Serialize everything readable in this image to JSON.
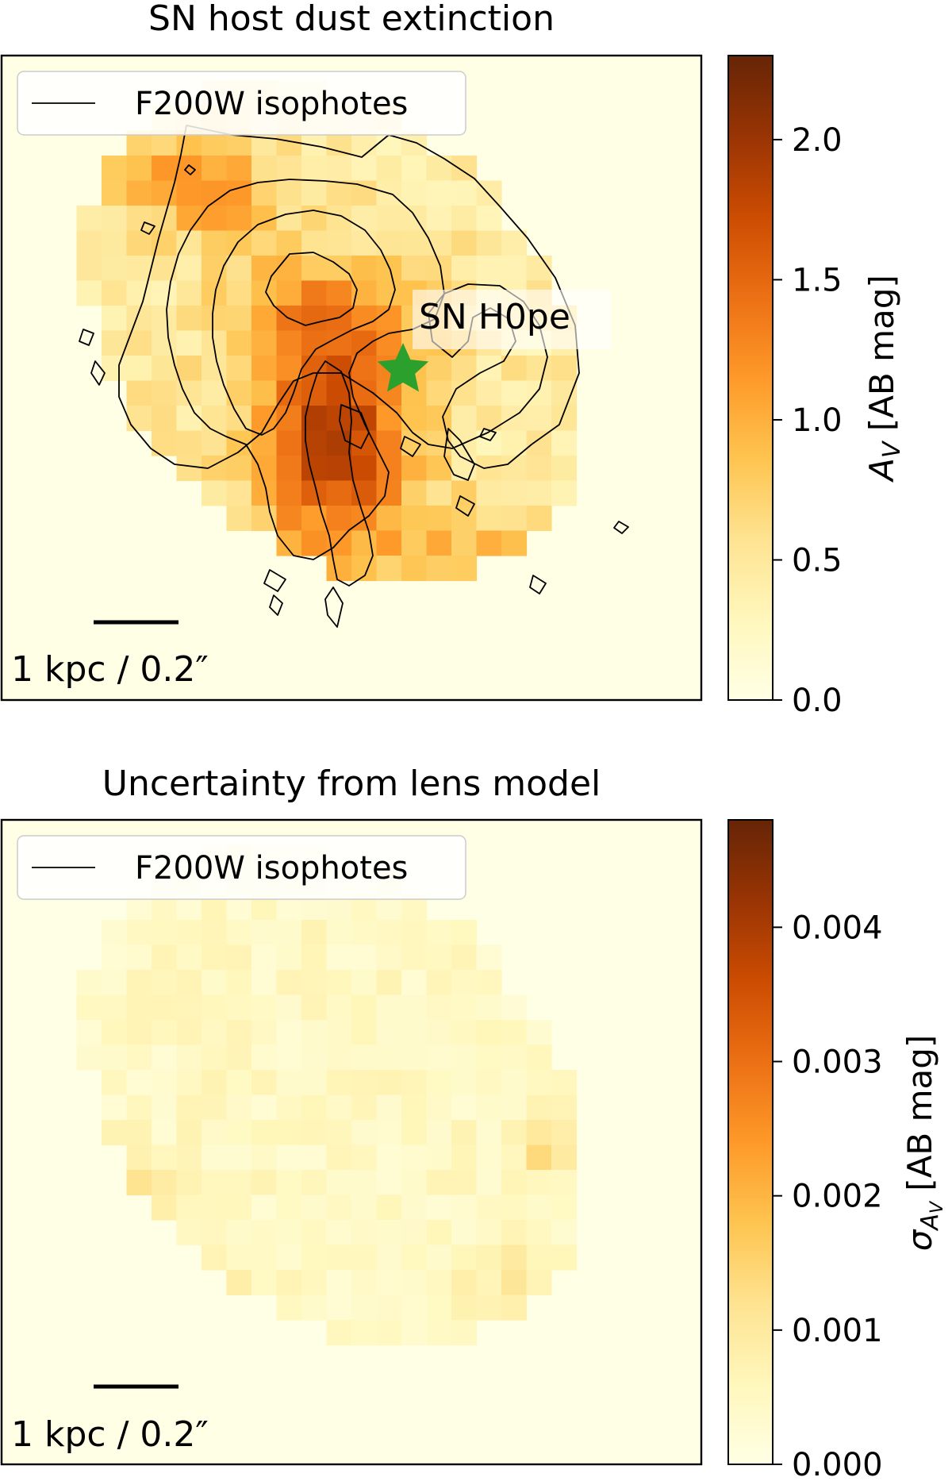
{
  "chart_data": [
    {
      "type": "heatmap",
      "title": "SN host dust extinction",
      "legend": {
        "label": "F200W isophotes",
        "position": "top-left"
      },
      "annotation": {
        "text": "SN H0pe",
        "marker": "star",
        "color": "#2ca02c"
      },
      "scalebar_label": "1 kpc / 0.2″",
      "colorbar": {
        "label_symbol": "A",
        "label_sub": "V",
        "label_rest": " [AB mag]",
        "range": [
          0.0,
          2.3
        ],
        "ticks": [
          "0.0",
          "0.5",
          "1.0",
          "1.5",
          "2.0"
        ],
        "tick_values": [
          0.0,
          0.5,
          1.0,
          1.5,
          2.0
        ],
        "colormap": "YlOrBr"
      }
    },
    {
      "type": "heatmap",
      "title": "Uncertainty from lens model",
      "legend": {
        "label": "F200W isophotes",
        "position": "top-left"
      },
      "scalebar_label": "1 kpc / 0.2″",
      "colorbar": {
        "label_symbol": "σ",
        "label_sub": "A",
        "label_subsub": "V",
        "label_rest": " [AB mag]",
        "range": [
          0.0,
          0.0048
        ],
        "ticks": [
          "0.000",
          "0.001",
          "0.002",
          "0.003",
          "0.004"
        ],
        "tick_values": [
          0.0,
          0.001,
          0.002,
          0.003,
          0.004
        ],
        "colormap": "YlOrBr"
      }
    }
  ]
}
